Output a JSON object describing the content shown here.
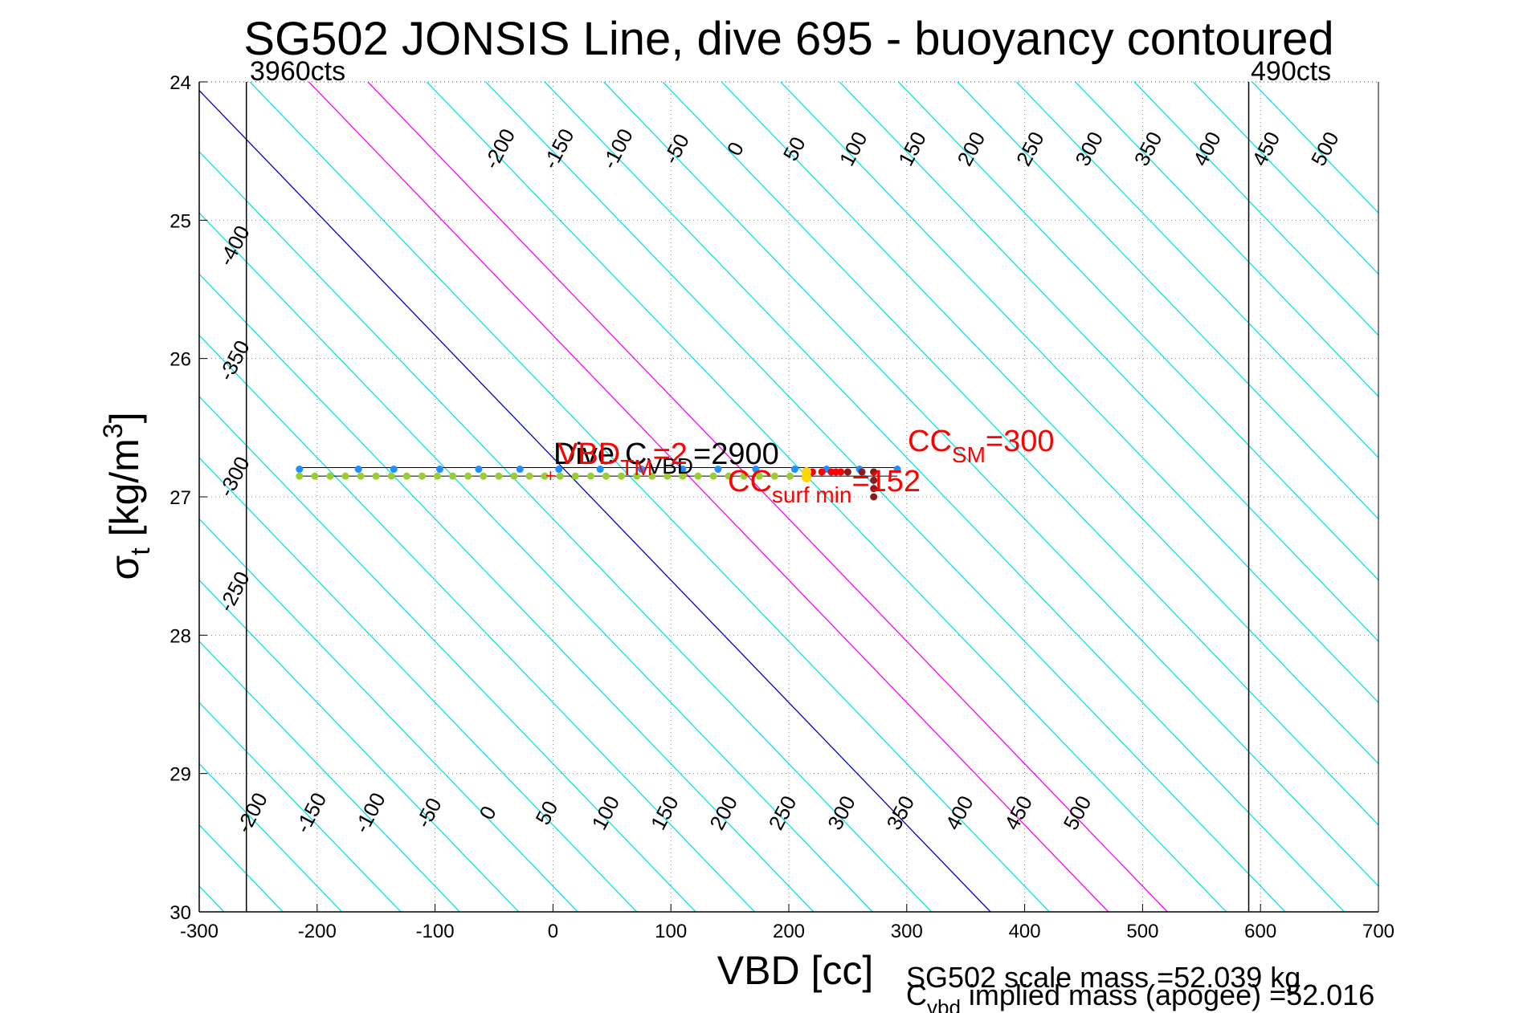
{
  "chart_data": {
    "type": "scatter",
    "title": "SG502 JONSIS Line, dive 695 - buoyancy contoured",
    "xlabel": "VBD [cc]",
    "ylabel": {
      "base": "σ",
      "sub": "t",
      "rest": " [kg/m",
      "sup": "3",
      "close": "]"
    },
    "xlim": [
      -300,
      700
    ],
    "ylim": [
      24,
      30
    ],
    "y_direction": "reversed",
    "grid": "dotted",
    "x_ticks": [
      -300,
      -200,
      -100,
      0,
      100,
      200,
      300,
      400,
      500,
      600,
      700
    ],
    "x_tick_labels": [
      "-300",
      "-200",
      "-100",
      "0",
      "100",
      "200",
      "300",
      "400",
      "500",
      "600",
      "700"
    ],
    "y_ticks": [
      24,
      25,
      26,
      27,
      28,
      29,
      30
    ],
    "y_tick_labels": [
      "24",
      "25",
      "26",
      "27",
      "28",
      "29",
      "30"
    ],
    "vertical_lines": [
      {
        "x": -260,
        "label": "3960cts",
        "color": "#000000"
      },
      {
        "x": 590,
        "label": "490cts",
        "color": "#000000"
      }
    ],
    "contours": {
      "slope_cc_per_sigma": 113,
      "ref_sigma": 27,
      "levels": [
        -400,
        -350,
        -300,
        -250,
        -200,
        -150,
        -100,
        -50,
        0,
        50,
        100,
        150,
        200,
        250,
        300,
        350,
        400,
        450,
        500
      ],
      "zero_at_ref": 32,
      "cc_per_gram": 1,
      "default_color": "#00e5ee",
      "highlight": [
        {
          "level": 0,
          "color": "#0000cc"
        },
        {
          "level": 100,
          "color": "#ff00ff"
        },
        {
          "level": 150,
          "color": "#ff00ff"
        }
      ],
      "top_labels": [
        "-200",
        "-150",
        "-100",
        "-50",
        "0",
        "50",
        "100",
        "150",
        "200",
        "250",
        "300",
        "350",
        "400",
        "450",
        "500"
      ],
      "bottom_labels": [
        "-200",
        "-150",
        "-100",
        "-50",
        "0",
        "50",
        "100",
        "150",
        "200",
        "250",
        "300",
        "350",
        "400",
        "450",
        "500"
      ],
      "left_labels": [
        "-400",
        "-350",
        "-300",
        "-250"
      ]
    },
    "series": [
      {
        "color": "#1e90ff",
        "x": [
          -215,
          -165,
          -135,
          -96,
          -63,
          -28,
          5,
          40,
          75,
          110,
          140,
          172,
          205,
          232,
          260,
          292
        ],
        "y": [
          26.8,
          26.8,
          26.8,
          26.8,
          26.8,
          26.8,
          26.8,
          26.8,
          26.8,
          26.8,
          26.8,
          26.8,
          26.8,
          26.8,
          26.8,
          26.8
        ]
      },
      {
        "color": "#9acd32",
        "x": [
          -215,
          -202,
          -189,
          -176,
          -163,
          -150,
          -137,
          -124,
          -111,
          -98,
          -85,
          -72,
          -59,
          -46,
          -33,
          -20,
          -7,
          6,
          19,
          32,
          45,
          58,
          71,
          84,
          97,
          110,
          123,
          136,
          149,
          162,
          175,
          188,
          201
        ],
        "y": [
          26.85,
          26.85,
          26.85,
          26.85,
          26.85,
          26.85,
          26.85,
          26.85,
          26.85,
          26.85,
          26.85,
          26.85,
          26.85,
          26.85,
          26.85,
          26.85,
          26.85,
          26.85,
          26.85,
          26.85,
          26.85,
          26.85,
          26.85,
          26.85,
          26.85,
          26.85,
          26.85,
          26.85,
          26.85,
          26.85,
          26.85,
          26.85,
          26.85
        ]
      },
      {
        "color": "#ff0000",
        "x": [
          220,
          228,
          236,
          240,
          244
        ],
        "y": [
          26.82,
          26.82,
          26.82,
          26.82,
          26.82
        ]
      },
      {
        "color": "#8b1a1a",
        "x": [
          250,
          262,
          272,
          272,
          272,
          272,
          272
        ],
        "y": [
          26.82,
          26.82,
          26.82,
          26.88,
          26.94,
          27.0,
          26.82
        ]
      },
      {
        "color": "#ffd700",
        "x": [
          215,
          215
        ],
        "y": [
          26.82,
          26.86
        ]
      }
    ],
    "annotations": {
      "dive": "Dive",
      "cvbd_label": {
        "base": "C",
        "sub": "VBD",
        "value": "=2900"
      },
      "tmvbd_label": {
        "base": "VBD",
        "sub": "TM",
        "value": "=2"
      },
      "cc_sm": {
        "base": "CC",
        "sub": "SM",
        "value": "=300"
      },
      "cc_surf_min": {
        "base": "CC",
        "sub": "surf min",
        "value": "=152"
      },
      "scale_mass": "SG502 scale mass =52.039 kg",
      "implied_mass": {
        "base": "C",
        "sub": "vbd",
        "rest": " implied mass (apogee) =52.016"
      }
    }
  }
}
